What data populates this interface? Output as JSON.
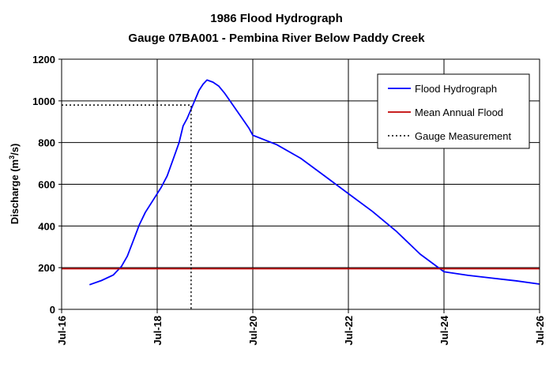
{
  "chart_data": {
    "type": "line",
    "title": "1986 Flood Hydrograph",
    "subtitle": "Gauge 07BA001 - Pembina River Below Paddy Creek",
    "ylabel": {
      "prefix": "Discharge (m",
      "sup": "3",
      "suffix": "/s)"
    },
    "xlabel": "",
    "xlim": [
      "Jul-16",
      "Jul-26"
    ],
    "ylim": [
      0,
      1200
    ],
    "x_ticks": [
      "Jul-16",
      "Jul-18",
      "Jul-20",
      "Jul-22",
      "Jul-24",
      "Jul-26"
    ],
    "y_ticks": [
      "0",
      "200",
      "400",
      "600",
      "800",
      "1000",
      "1200"
    ],
    "grid": true,
    "legend_position": "top-right",
    "colors": {
      "hydrograph": "#0000ff",
      "mean_flood": "#c00000",
      "measurement": "#000000"
    },
    "series": [
      {
        "name": "Flood Hydrograph",
        "style": "solid",
        "points": [
          [
            "Jul-16 14:00",
            118
          ],
          [
            "Jul-16 20:00",
            138
          ],
          [
            "Jul-17 02:00",
            165
          ],
          [
            "Jul-17 06:00",
            205
          ],
          [
            "Jul-17 09:00",
            255
          ],
          [
            "Jul-17 12:00",
            330
          ],
          [
            "Jul-17 15:00",
            405
          ],
          [
            "Jul-17 18:00",
            465
          ],
          [
            "Jul-17 22:00",
            525
          ],
          [
            "Jul-18 02:00",
            585
          ],
          [
            "Jul-18 05:00",
            640
          ],
          [
            "Jul-18 08:00",
            720
          ],
          [
            "Jul-18 11:00",
            800
          ],
          [
            "Jul-18 13:00",
            880
          ],
          [
            "Jul-18 15:00",
            915
          ],
          [
            "Jul-18 17:00",
            960
          ],
          [
            "Jul-18 19:00",
            1005
          ],
          [
            "Jul-18 21:00",
            1050
          ],
          [
            "Jul-18 23:00",
            1080
          ],
          [
            "Jul-19 01:00",
            1100
          ],
          [
            "Jul-19 04:00",
            1090
          ],
          [
            "Jul-19 07:00",
            1070
          ],
          [
            "Jul-19 10:00",
            1035
          ],
          [
            "Jul-19 14:00",
            980
          ],
          [
            "Jul-19 18:00",
            925
          ],
          [
            "Jul-19 22:00",
            870
          ],
          [
            "Jul-20 00:00",
            835
          ],
          [
            "Jul-20 12:00",
            790
          ],
          [
            "Jul-21 00:00",
            725
          ],
          [
            "Jul-21 12:00",
            640
          ],
          [
            "Jul-22 00:00",
            555
          ],
          [
            "Jul-22 12:00",
            470
          ],
          [
            "Jul-23 00:00",
            375
          ],
          [
            "Jul-23 12:00",
            265
          ],
          [
            "Jul-24 00:00",
            180
          ],
          [
            "Jul-24 12:00",
            163
          ],
          [
            "Jul-25 00:00",
            150
          ],
          [
            "Jul-25 12:00",
            137
          ],
          [
            "Jul-26 00:00",
            121
          ]
        ]
      },
      {
        "name": "Mean Annual Flood",
        "style": "solid",
        "points": [
          [
            "Jul-16 00:00",
            195
          ],
          [
            "Jul-26 00:00",
            195
          ]
        ]
      },
      {
        "name": "Gauge Measurement",
        "style": "dotted",
        "points": [
          [
            "Jul-16 00:00",
            980
          ],
          [
            "Jul-18 17:00",
            980
          ],
          [
            "Jul-18 17:00",
            0
          ]
        ]
      }
    ]
  }
}
